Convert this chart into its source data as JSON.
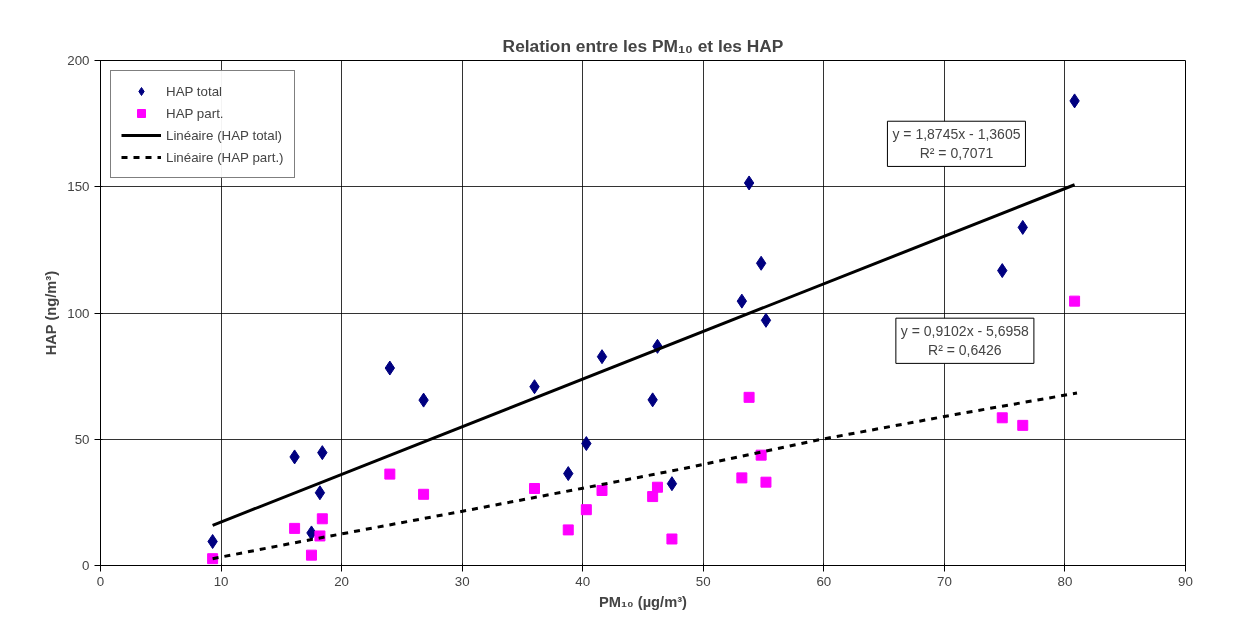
{
  "chart_data": {
    "type": "scatter",
    "title": "Relation entre les PM₁₀ et les HAP",
    "xlabel": "PM₁₀ (µg/m³)",
    "ylabel": "HAP (ng/m³)",
    "xlim": [
      0,
      90
    ],
    "xticks": [
      0,
      10,
      20,
      30,
      40,
      50,
      60,
      70,
      80,
      90
    ],
    "ylim": [
      0,
      200
    ],
    "yticks": [
      0,
      50,
      100,
      150,
      200
    ],
    "grid": true,
    "legend": "top left",
    "series": [
      {
        "name": "HAP total",
        "marker": "diamond",
        "color": "#000080",
        "x": [
          9.3,
          16.1,
          17.5,
          18.2,
          18.4,
          24.0,
          26.8,
          36.0,
          38.8,
          40.3,
          41.6,
          45.8,
          46.2,
          47.4,
          53.2,
          53.8,
          54.8,
          55.2,
          74.8,
          76.5,
          80.8
        ],
        "values": [
          9.5,
          43,
          12.9,
          28.8,
          44.7,
          78.2,
          65.5,
          70.8,
          36.4,
          48.3,
          82.7,
          65.6,
          86.8,
          32.4,
          104.7,
          151.5,
          119.7,
          97.1,
          116.8,
          133.9,
          184
        ]
      },
      {
        "name": "HAP part.",
        "marker": "square",
        "color": "#ff00ff",
        "x": [
          9.3,
          16.1,
          17.5,
          18.2,
          18.4,
          24.0,
          26.8,
          36.0,
          38.8,
          40.3,
          41.6,
          45.8,
          46.2,
          47.4,
          53.2,
          53.8,
          54.8,
          55.2,
          74.8,
          76.5,
          80.8
        ],
        "values": [
          2.7,
          14.7,
          4.1,
          11.7,
          18.5,
          36.2,
          28.2,
          30.5,
          14.1,
          22.1,
          29.7,
          27.3,
          31,
          10.5,
          34.7,
          66.6,
          43.7,
          33,
          58.5,
          55.5,
          104.7
        ]
      },
      {
        "name": "Linéaire (HAP total)",
        "type": "line",
        "line_style": "solid",
        "color": "#000000",
        "x": [
          9.3,
          80.8
        ],
        "values": [
          15.9,
          150.8
        ]
      },
      {
        "name": "Linéaire (HAP part.)",
        "type": "line",
        "line_style": "dashed",
        "color": "#000000",
        "x": [
          9.3,
          17.4,
          30.6,
          40.0,
          48.6,
          59.5,
          70.9,
          81.0
        ],
        "values": [
          2.7,
          10.2,
          22,
          30.6,
          38.6,
          49.7,
          59.8,
          68.3
        ]
      }
    ],
    "annotations": [
      "y = 1,8745x - 1,3605\nR² = 0,7071",
      "y = 0,9102x - 5,6958\nR² = 0,6426"
    ]
  }
}
